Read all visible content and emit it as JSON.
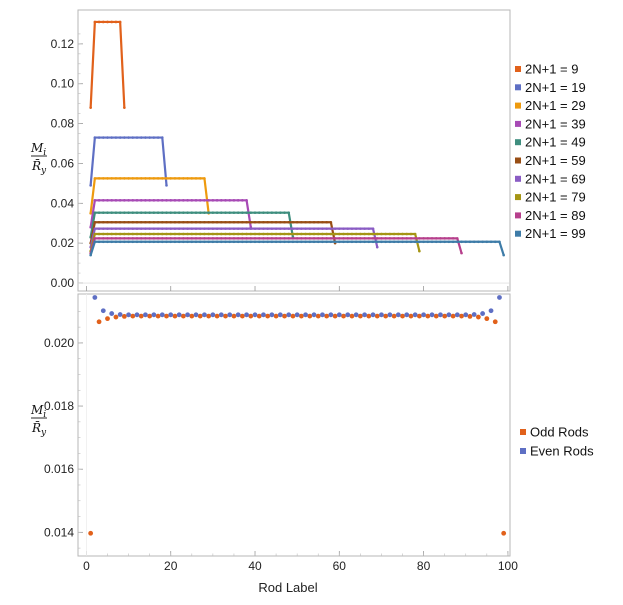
{
  "chart_data": [
    {
      "type": "line",
      "ylabel": {
        "num": "M",
        "num_sub": "i",
        "den": "R̄",
        "den_sub": "y"
      },
      "xlim": [
        -2,
        100.5
      ],
      "ylim": [
        -0.004,
        0.137
      ],
      "yticks": [
        0.0,
        0.02,
        0.04,
        0.06,
        0.08,
        0.1,
        0.12
      ],
      "ytick_labels": [
        "0.00",
        "0.02",
        "0.04",
        "0.06",
        "0.08",
        "0.10",
        "0.12"
      ],
      "grid": false,
      "legend_position": "right",
      "series": [
        {
          "name": "2N+1 = 9",
          "n": 9,
          "edge": 0.088,
          "edge2": 0.088,
          "plateau": 0.131,
          "color": "#E1611B"
        },
        {
          "name": "2N+1 = 19",
          "n": 19,
          "edge": 0.049,
          "edge2": 0.049,
          "plateau": 0.073,
          "color": "#5E6FC4"
        },
        {
          "name": "2N+1 = 29",
          "n": 29,
          "edge": 0.035,
          "edge2": 0.035,
          "plateau": 0.0525,
          "color": "#EE9A0E"
        },
        {
          "name": "2N+1 = 39",
          "n": 39,
          "edge": 0.028,
          "edge2": 0.028,
          "plateau": 0.0415,
          "color": "#A74AB5"
        },
        {
          "name": "2N+1 = 49",
          "n": 49,
          "edge": 0.023,
          "edge2": 0.023,
          "plateau": 0.0353,
          "color": "#3E8E7E"
        },
        {
          "name": "2N+1 = 59",
          "n": 59,
          "edge": 0.02,
          "edge2": 0.02,
          "plateau": 0.0305,
          "color": "#984E14"
        },
        {
          "name": "2N+1 = 69",
          "n": 69,
          "edge": 0.018,
          "edge2": 0.018,
          "plateau": 0.0273,
          "color": "#8A5CC4"
        },
        {
          "name": "2N+1 = 79",
          "n": 79,
          "edge": 0.016,
          "edge2": 0.016,
          "plateau": 0.0246,
          "color": "#A59514"
        },
        {
          "name": "2N+1 = 89",
          "n": 89,
          "edge": 0.015,
          "edge2": 0.015,
          "plateau": 0.0224,
          "color": "#B63F8C"
        },
        {
          "name": "2N+1 = 99",
          "n": 99,
          "edge": 0.014,
          "edge2": 0.014,
          "plateau": 0.0207,
          "color": "#3E7CA8"
        }
      ]
    },
    {
      "type": "scatter",
      "xlabel": "Rod Label",
      "ylabel": {
        "num": "M",
        "num_sub": "i",
        "den": "R̄",
        "den_sub": "y"
      },
      "xlim": [
        -2,
        100.5
      ],
      "ylim": [
        0.01325,
        0.02155
      ],
      "xticks": [
        0,
        20,
        40,
        60,
        80,
        100
      ],
      "xtick_labels": [
        "0",
        "20",
        "40",
        "60",
        "80",
        "100"
      ],
      "yticks": [
        0.014,
        0.016,
        0.018,
        0.02
      ],
      "ytick_labels": [
        "0.014",
        "0.016",
        "0.018",
        "0.020"
      ],
      "grid": false,
      "legend_position": "right",
      "series": [
        {
          "name": "Odd Rods",
          "color": "#E1611B",
          "x": [
            1,
            3,
            5,
            7,
            9,
            11,
            13,
            15,
            17,
            19,
            21,
            23,
            25,
            27,
            29,
            31,
            33,
            35,
            37,
            39,
            41,
            43,
            45,
            47,
            49,
            51,
            53,
            55,
            57,
            59,
            61,
            63,
            65,
            67,
            69,
            71,
            73,
            75,
            77,
            79,
            81,
            83,
            85,
            87,
            89,
            91,
            93,
            95,
            97,
            99
          ],
          "y": [
            0.01397,
            0.02067,
            0.02077,
            0.02082,
            0.02084,
            0.02085,
            0.02085,
            0.02085,
            0.02085,
            0.02085,
            0.02085,
            0.02085,
            0.02085,
            0.02085,
            0.02085,
            0.02085,
            0.02085,
            0.02085,
            0.02085,
            0.02085,
            0.02085,
            0.02085,
            0.02085,
            0.02085,
            0.02085,
            0.02085,
            0.02085,
            0.02085,
            0.02085,
            0.02085,
            0.02085,
            0.02085,
            0.02085,
            0.02085,
            0.02085,
            0.02085,
            0.02085,
            0.02085,
            0.02085,
            0.02085,
            0.02085,
            0.02085,
            0.02085,
            0.02085,
            0.02085,
            0.02084,
            0.02082,
            0.02077,
            0.02067,
            0.01397
          ]
        },
        {
          "name": "Even Rods",
          "color": "#5E6FC4",
          "x": [
            2,
            4,
            6,
            8,
            10,
            12,
            14,
            16,
            18,
            20,
            22,
            24,
            26,
            28,
            30,
            32,
            34,
            36,
            38,
            40,
            42,
            44,
            46,
            48,
            50,
            52,
            54,
            56,
            58,
            60,
            62,
            64,
            66,
            68,
            70,
            72,
            74,
            76,
            78,
            80,
            82,
            84,
            86,
            88,
            90,
            92,
            94,
            96,
            98
          ],
          "y": [
            0.02144,
            0.02102,
            0.02093,
            0.0209,
            0.02089,
            0.02089,
            0.02089,
            0.02089,
            0.02089,
            0.02089,
            0.02089,
            0.02089,
            0.02089,
            0.02089,
            0.02089,
            0.02089,
            0.02089,
            0.02089,
            0.02089,
            0.02089,
            0.02089,
            0.02089,
            0.02089,
            0.02089,
            0.02089,
            0.02089,
            0.02089,
            0.02089,
            0.02089,
            0.02089,
            0.02089,
            0.02089,
            0.02089,
            0.02089,
            0.02089,
            0.02089,
            0.02089,
            0.02089,
            0.02089,
            0.02089,
            0.02089,
            0.02089,
            0.02089,
            0.02089,
            0.02089,
            0.0209,
            0.02093,
            0.02102,
            0.02144
          ]
        }
      ]
    }
  ]
}
